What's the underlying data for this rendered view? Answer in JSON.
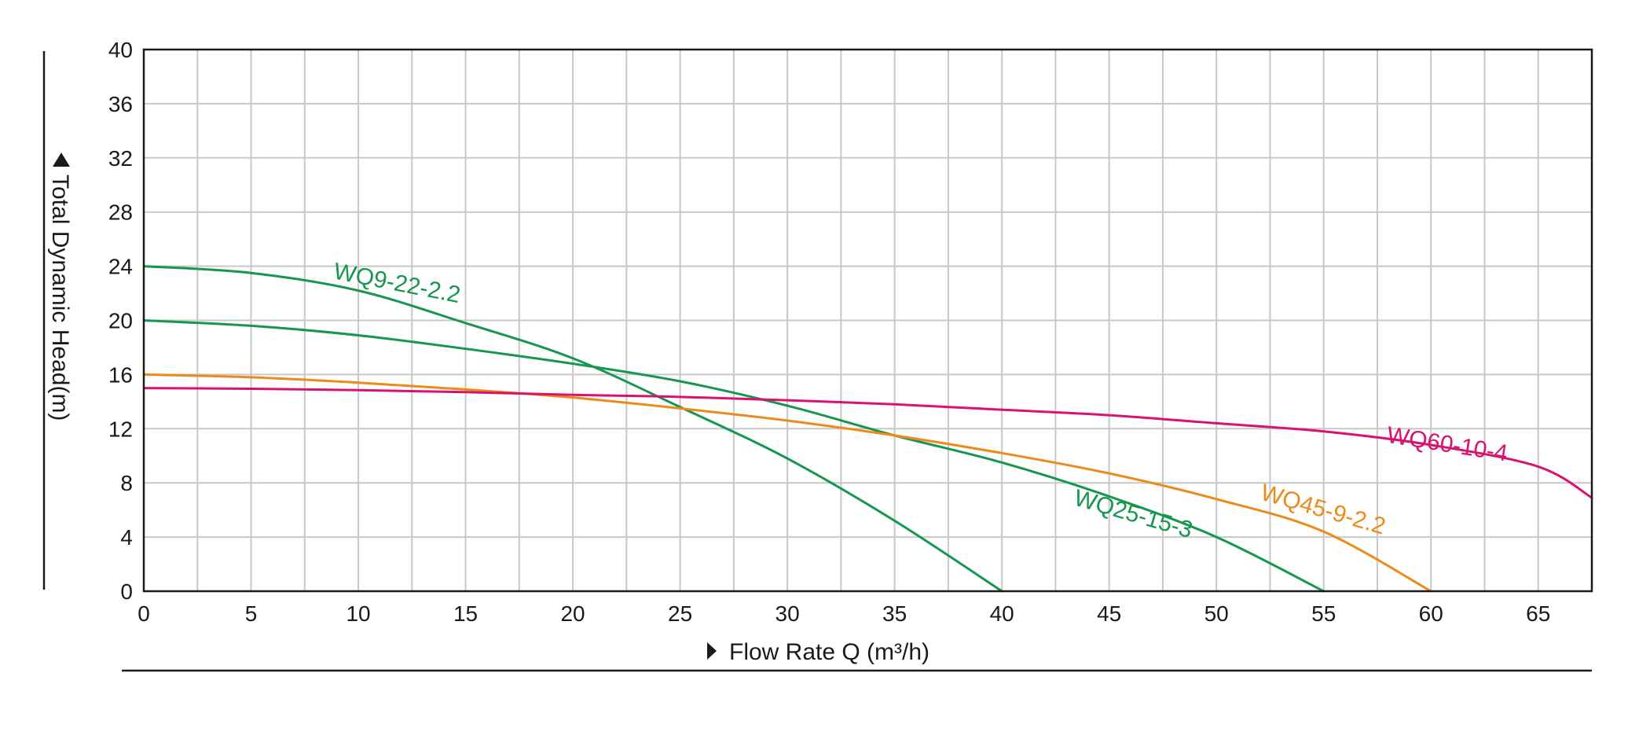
{
  "chart_data": {
    "type": "line",
    "xlabel": "Flow Rate Q (m³/h)",
    "ylabel": "Total Dynamic Head(m)",
    "xlim": [
      0,
      67.5
    ],
    "ylim": [
      0,
      40
    ],
    "x_ticks": [
      0,
      5,
      10,
      15,
      20,
      25,
      30,
      35,
      40,
      45,
      50,
      55,
      60,
      65
    ],
    "y_ticks": [
      0,
      4,
      8,
      12,
      16,
      20,
      24,
      28,
      32,
      36,
      40
    ],
    "x_minor_step": 2.5,
    "grid": true,
    "colors": {
      "green": "#16964f",
      "orange": "#ee8a1a",
      "magenta": "#d8136f",
      "grid": "#c8c8c8",
      "axis": "#1a1a1a"
    },
    "series": [
      {
        "name": "WQ9-22-2.2",
        "color": "#16964f",
        "points": [
          [
            0,
            24
          ],
          [
            5,
            23.5
          ],
          [
            10,
            22.2
          ],
          [
            15,
            19.8
          ],
          [
            20,
            17.2
          ],
          [
            25,
            13.6
          ],
          [
            30,
            9.8
          ],
          [
            35,
            5.2
          ],
          [
            40,
            0
          ]
        ],
        "label_anchor": [
          8.8,
          23.1
        ],
        "label_angle": 11
      },
      {
        "name": "WQ25-15-3",
        "color": "#16964f",
        "points": [
          [
            0,
            20
          ],
          [
            5,
            19.6
          ],
          [
            10,
            18.9
          ],
          [
            15,
            17.9
          ],
          [
            20,
            16.8
          ],
          [
            25,
            15.5
          ],
          [
            30,
            13.7
          ],
          [
            35,
            11.5
          ],
          [
            40,
            9.5
          ],
          [
            45,
            7.0
          ],
          [
            50,
            4.0
          ],
          [
            55,
            0
          ]
        ],
        "label_anchor": [
          43.3,
          6.4
        ],
        "label_angle": 16
      },
      {
        "name": "WQ45-9-2.2",
        "color": "#ee8a1a",
        "points": [
          [
            0,
            16
          ],
          [
            5,
            15.8
          ],
          [
            10,
            15.4
          ],
          [
            15,
            14.9
          ],
          [
            20,
            14.3
          ],
          [
            25,
            13.5
          ],
          [
            30,
            12.6
          ],
          [
            35,
            11.5
          ],
          [
            40,
            10.2
          ],
          [
            45,
            8.7
          ],
          [
            50,
            6.8
          ],
          [
            55,
            4.4
          ],
          [
            60,
            0
          ]
        ],
        "label_anchor": [
          52.0,
          6.8
        ],
        "label_angle": 16
      },
      {
        "name": "WQ60-10-4",
        "color": "#d8136f",
        "points": [
          [
            0,
            15
          ],
          [
            5,
            14.95
          ],
          [
            10,
            14.85
          ],
          [
            15,
            14.7
          ],
          [
            20,
            14.5
          ],
          [
            25,
            14.35
          ],
          [
            30,
            14.1
          ],
          [
            35,
            13.8
          ],
          [
            40,
            13.4
          ],
          [
            45,
            13.0
          ],
          [
            50,
            12.4
          ],
          [
            55,
            11.8
          ],
          [
            60,
            10.8
          ],
          [
            65,
            9.2
          ],
          [
            67.5,
            6.9
          ]
        ],
        "label_anchor": [
          57.9,
          11.0
        ],
        "label_angle": 9
      }
    ]
  }
}
